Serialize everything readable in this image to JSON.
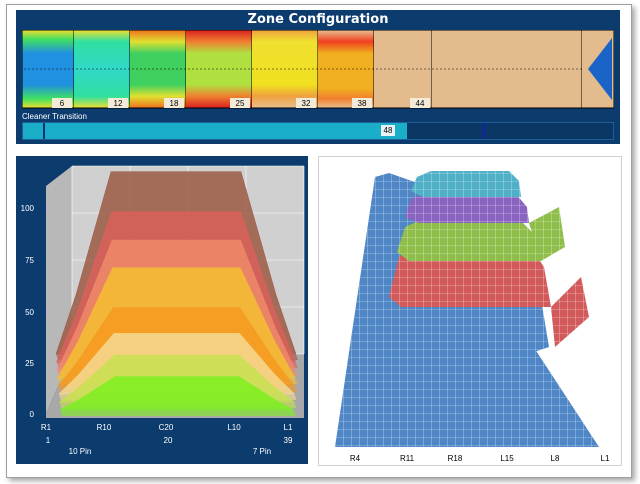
{
  "zone_config": {
    "title": "Zone Configuration",
    "zone_labels": [
      "6",
      "12",
      "18",
      "25",
      "32",
      "38",
      "44"
    ],
    "transition_label": "Cleaner Transition",
    "transition_value": "48",
    "transition_fill_fraction": 0.65
  },
  "chart_data": [
    {
      "type": "area",
      "title": "",
      "y_ticks": [
        "0",
        "25",
        "50",
        "75",
        "100"
      ],
      "ylim": [
        0,
        100
      ],
      "x_ticks_top": [
        "R1",
        "R10",
        "C20",
        "L10",
        "L1"
      ],
      "x_ticks_bottom": [
        "1",
        "20",
        "39"
      ],
      "x_captions": [
        "10 Pin",
        "7 Pin"
      ],
      "series": [
        {
          "color": "#9b5a44",
          "plateau": 97
        },
        {
          "color": "#d9605a",
          "plateau": 86
        },
        {
          "color": "#f08a6a",
          "plateau": 76
        },
        {
          "color": "#f5c030",
          "plateau": 66
        },
        {
          "color": "#f59a20",
          "plateau": 48
        },
        {
          "color": "#f5d890",
          "plateau": 38
        },
        {
          "color": "#c8e050",
          "plateau": 30
        },
        {
          "color": "#7cf020",
          "plateau": 22
        }
      ]
    },
    {
      "type": "surface",
      "title": "",
      "x_ticks": [
        "R4",
        "R11",
        "R18",
        "L15",
        "L8",
        "L1"
      ],
      "layers": [
        {
          "color": "#4f86c6"
        },
        {
          "color": "#d25a5a"
        },
        {
          "color": "#8fbf4a"
        },
        {
          "color": "#8a62c0"
        },
        {
          "color": "#4fb0c8"
        }
      ]
    }
  ]
}
